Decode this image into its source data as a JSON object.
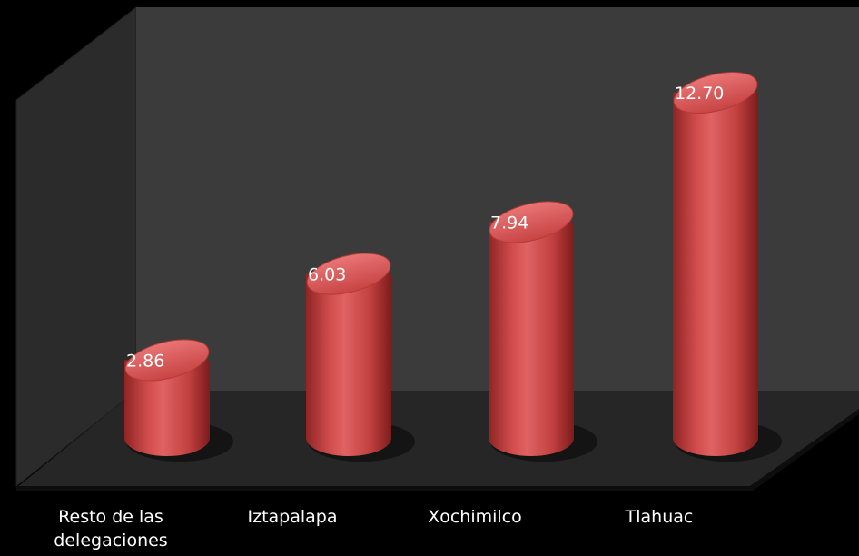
{
  "chart_data": {
    "type": "bar",
    "style": "3d-cylinder",
    "categories": [
      "Resto de las\ndelegaciones",
      "Iztapalapa",
      "Xochimilco",
      "Tlahuac"
    ],
    "values": [
      2.86,
      6.03,
      7.94,
      12.7
    ],
    "value_labels": [
      "2.86",
      "6.03",
      "7.94",
      "12.70"
    ],
    "title": "",
    "xlabel": "",
    "ylabel": "",
    "ylim": [
      0,
      13.5
    ],
    "grid": false,
    "legend": "none",
    "colors": {
      "background": "#000000",
      "back_wall": "#3b3b3b",
      "side_wall": "#2b2b2b",
      "floor": "#262626",
      "bar": "#c94545",
      "bar_dark": "#8f2424",
      "bar_light": "#e76e6e",
      "label": "#ffffff"
    }
  }
}
